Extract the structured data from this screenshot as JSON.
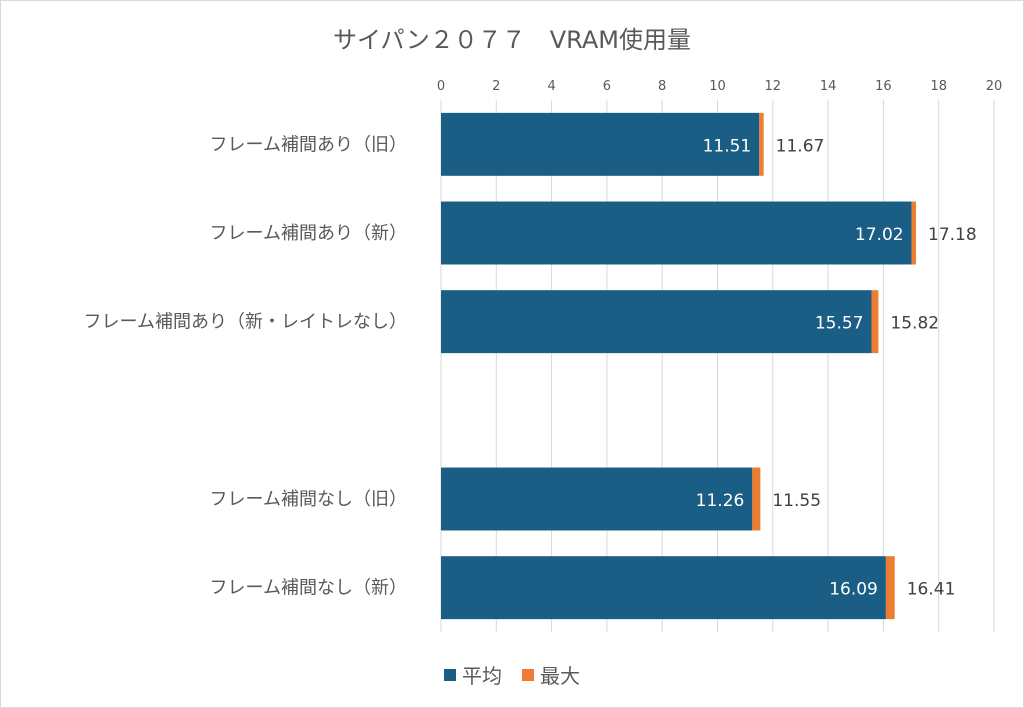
{
  "chart_data": {
    "type": "bar",
    "orientation": "horizontal",
    "stacked": true,
    "title": "サイパン２０７７　VRAM使用量",
    "categories": [
      "フレーム補間あり（旧）",
      "フレーム補間あり（新）",
      "フレーム補間あり（新・レイトレなし）",
      "",
      "フレーム補間なし（旧）",
      "フレーム補間なし（新）"
    ],
    "series": [
      {
        "name": "平均",
        "color": "#1a5e85",
        "values": [
          11.51,
          17.02,
          15.57,
          null,
          11.26,
          16.09
        ]
      },
      {
        "name": "最大",
        "color": "#ed7d31",
        "values": [
          0.16,
          0.16,
          0.25,
          null,
          0.29,
          0.32
        ]
      }
    ],
    "data_labels": {
      "平均": [
        "11.51",
        "17.02",
        "15.57",
        "",
        "11.26",
        "16.09"
      ],
      "最大": [
        "11.67",
        "17.18",
        "15.82",
        "",
        "11.55",
        "16.41"
      ]
    },
    "xlim": [
      0,
      20
    ],
    "xticks": [
      "0",
      "2",
      "4",
      "6",
      "8",
      "10",
      "12",
      "14",
      "16",
      "18",
      "20"
    ],
    "x_axis_position": "top",
    "grid": true,
    "legend": "bottom"
  }
}
